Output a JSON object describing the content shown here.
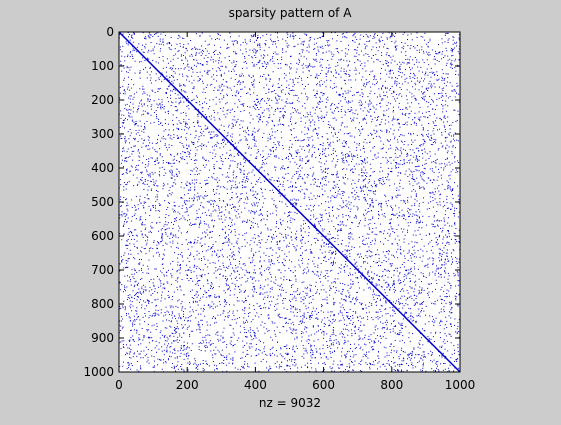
{
  "colors": {
    "figure_background": "#cccccc",
    "axes_background": "#ffffff",
    "marker": "#0000cc",
    "axis_line": "#000000",
    "text": "#000000"
  },
  "chart_data": {
    "type": "scatter",
    "subtype": "sparsity pattern",
    "title": "sparsity pattern of A",
    "xlabel": "nz = 9032",
    "ylabel": "",
    "matrix_size": [
      1000,
      1000
    ],
    "nonzero_count": 9032,
    "diagonal_nonzero": true,
    "random_offdiagonal_nonzero": 8032,
    "xlim": [
      0,
      1000
    ],
    "ylim": [
      1000,
      0
    ],
    "y_axis_reversed": true,
    "xticks": [
      0,
      200,
      400,
      600,
      800,
      1000
    ],
    "yticks": [
      0,
      100,
      200,
      300,
      400,
      500,
      600,
      700,
      800,
      900,
      1000
    ],
    "xtick_labels": [
      "0",
      "200",
      "400",
      "600",
      "800",
      "1000"
    ],
    "ytick_labels": [
      "0",
      "100",
      "200",
      "300",
      "400",
      "500",
      "600",
      "700",
      "800",
      "900",
      "1000"
    ],
    "grid": false,
    "legend": "none"
  }
}
